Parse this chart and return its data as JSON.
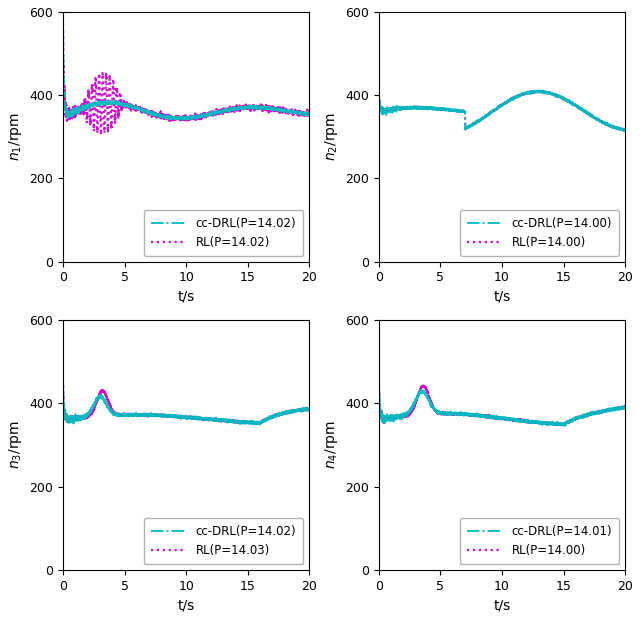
{
  "subplot_labels": [
    "n_1",
    "n_2",
    "n_3",
    "n_4"
  ],
  "cc_drl_labels": [
    "cc-DRL(P=14.02)",
    "cc-DRL(P=14.00)",
    "cc-DRL(P=14.02)",
    "cc-DRL(P=14.01)"
  ],
  "rl_labels": [
    "RL(P=14.02)",
    "RL(P=14.00)",
    "RL(P=14.03)",
    "RL(P=14.00)"
  ],
  "cc_drl_color": "#00BFBF",
  "rl_color": "#CC00CC",
  "ylim": [
    0,
    600
  ],
  "xlim": [
    0,
    20
  ],
  "yticks": [
    0,
    200,
    400,
    600
  ],
  "xticks": [
    0,
    5,
    10,
    15,
    20
  ],
  "xlabel": "t/s",
  "figsize": [
    6.4,
    6.19
  ],
  "dpi": 100,
  "base_rpm": 360,
  "init_spike": 550
}
